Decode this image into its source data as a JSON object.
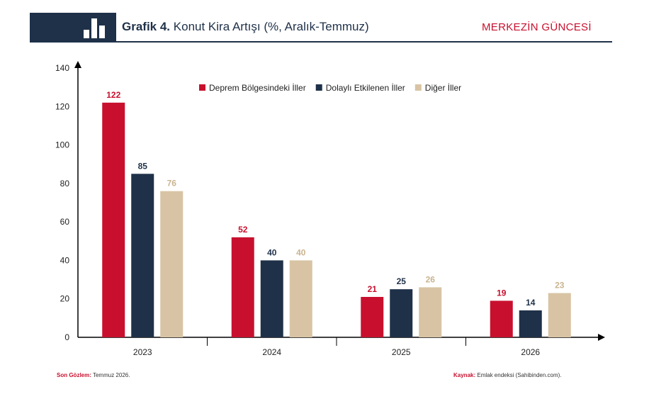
{
  "header": {
    "title_bold": "Grafik 4.",
    "title_rest": "Konut Kira Artışı (%, Aralık-Temmuz)",
    "brand": "MERKEZİN GÜNCESİ",
    "logo_icon": "bar-chart-icon"
  },
  "footer": {
    "left_label": "Son Gözlem:",
    "left_value": "Temmuz 2026.",
    "right_label": "Kaynak:",
    "right_value": "Emlak endeksi (Sahibinden.com)."
  },
  "colors": {
    "series1": "#c8102e",
    "series2": "#1f3149",
    "series3": "#d8c4a4",
    "label3": "#c9b48f",
    "dark": "#1f3149"
  },
  "chart_data": {
    "type": "bar",
    "categories": [
      "2023",
      "2024",
      "2025",
      "2026"
    ],
    "series": [
      {
        "name": "Deprem Bölgesindeki İller",
        "values": [
          122,
          52,
          21,
          19
        ]
      },
      {
        "name": "Dolaylı Etkilenen İller",
        "values": [
          85,
          40,
          25,
          14
        ]
      },
      {
        "name": "Diğer İller",
        "values": [
          76,
          40,
          26,
          23
        ]
      }
    ],
    "ylim": [
      0,
      140
    ],
    "yticks": [
      0,
      20,
      40,
      60,
      80,
      100,
      120,
      140
    ],
    "legend_position": "top-center",
    "grid": false,
    "data_labels": true
  }
}
